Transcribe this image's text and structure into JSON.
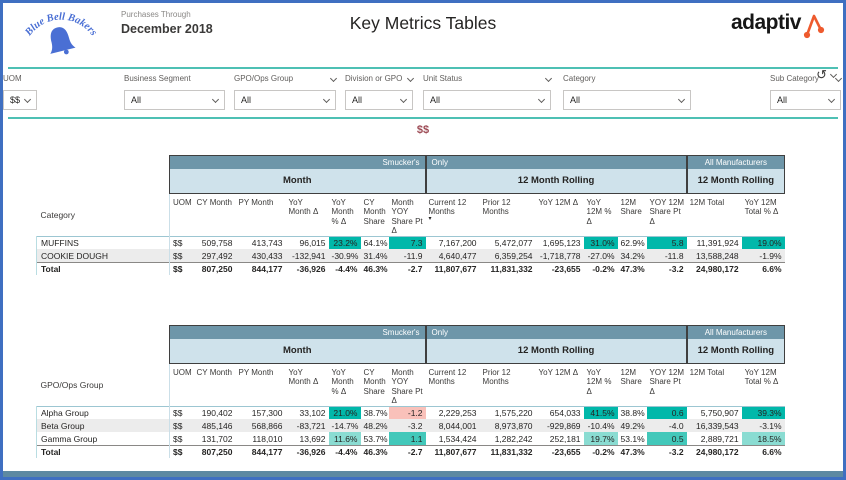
{
  "colors": {
    "page_border": "#3F6FC1",
    "teal_rule": "#4EC0B4",
    "band_dark": "#6E96A9",
    "band_light": "#CFE2EB",
    "pos_strong": "#01B8AA",
    "pos_mid": "#42C8BA",
    "pos_light": "#8ADCD2",
    "neg_strong": "#FD625E",
    "neg_light": "#F9C1BA",
    "measure": "#9D4B55",
    "bottom_bar": "#5D89A2",
    "logo_blue": "#4A6FD4",
    "brand_orange": "#EE5A2E"
  },
  "header": {
    "logo_text": "Blue Bell Bakers",
    "purchases_label": "Purchases Through",
    "period": "December 2018",
    "title": "Key Metrics Tables",
    "brand": "adaptiv"
  },
  "filters": [
    {
      "label": "Business Segment",
      "value": "All",
      "label_chevron": false
    },
    {
      "label": "GPO/Ops Group",
      "value": "All",
      "label_chevron": true
    },
    {
      "label": "Division or GPO",
      "value": "All",
      "label_chevron": true
    },
    {
      "label": "Unit Status",
      "value": "All",
      "label_chevron": true
    },
    {
      "label": "Category",
      "value": "All",
      "label_chevron": false
    },
    {
      "label": "Sub Category",
      "value": "All",
      "label_chevron": true
    },
    {
      "label": "UOM",
      "value": "$$",
      "label_chevron": false
    }
  ],
  "undo_glyph": "↺",
  "selected_measure": "$$",
  "tables": [
    {
      "row_header_label": "Category",
      "band1": {
        "smuckers": "Smucker's",
        "only": "Only",
        "all_manufacturers": "All Manufacturers"
      },
      "band2": {
        "month": "Month",
        "rolling": "12 Month Rolling",
        "rolling_all": "12 Month Rolling"
      },
      "columns": [
        "UOM",
        "CY Month",
        "PY Month",
        "YoY Month Δ",
        "YoY Month % Δ",
        "CY Month Share",
        "Month YOY Share Pt Δ",
        "Current 12 Months",
        "Prior 12 Months",
        "YoY 12M Δ",
        "YoY 12M % Δ",
        "12M Share",
        "YOY 12M Share Pt Δ",
        "12M Total",
        "YoY 12M Total % Δ"
      ],
      "sort_column_index": 7,
      "sort_glyph": "▾",
      "rows": [
        {
          "label": "MUFFINS",
          "cells": [
            "$$",
            "509,758",
            "413,743",
            "96,015",
            {
              "v": "23.2%",
              "h": "t3"
            },
            "64.1%",
            {
              "v": "7.3",
              "h": "t3"
            },
            "7,167,200",
            "5,472,077",
            "1,695,123",
            {
              "v": "31.0%",
              "h": "t3"
            },
            "62.9%",
            {
              "v": "5.8",
              "h": "t3"
            },
            "11,391,924",
            {
              "v": "19.0%",
              "h": "t3"
            }
          ]
        },
        {
          "label": "COOKIE DOUGH",
          "stripe": true,
          "cells": [
            "$$",
            "297,492",
            "430,433",
            "-132,941",
            {
              "v": "-30.9%",
              "h": "r3"
            },
            "31.4%",
            {
              "v": "-11.9",
              "h": "r3"
            },
            "4,640,477",
            "6,359,254",
            "-1,718,778",
            {
              "v": "-27.0%",
              "h": "r3"
            },
            "34.2%",
            {
              "v": "-11.8",
              "h": "r3"
            },
            "13,588,248",
            {
              "v": "-1.9%",
              "h": "r3"
            }
          ]
        },
        {
          "label": "Total",
          "total": true,
          "cells": [
            "$$",
            "807,250",
            "844,177",
            "-36,926",
            "-4.4%",
            "46.3%",
            "-2.7",
            "11,807,677",
            "11,831,332",
            "-23,655",
            "-0.2%",
            "47.3%",
            "-3.2",
            "24,980,172",
            "6.6%"
          ]
        }
      ]
    },
    {
      "row_header_label": "GPO/Ops Group",
      "band1": {
        "smuckers": "Smucker's",
        "only": "Only",
        "all_manufacturers": "All Manufacturers"
      },
      "band2": {
        "month": "Month",
        "rolling": "12 Month Rolling",
        "rolling_all": "12 Month Rolling"
      },
      "columns": [
        "UOM",
        "CY Month",
        "PY Month",
        "YoY Month Δ",
        "YoY Month % Δ",
        "CY Month Share",
        "Month YOY Share Pt Δ",
        "Current 12 Months",
        "Prior 12 Months",
        "YoY 12M Δ",
        "YoY 12M % Δ",
        "12M Share",
        "YOY 12M Share Pt Δ",
        "12M Total",
        "YoY 12M Total % Δ"
      ],
      "sort_column_index": -1,
      "sort_glyph": "▾",
      "rows": [
        {
          "label": "Alpha Group",
          "cells": [
            "$$",
            "190,402",
            "157,300",
            "33,102",
            {
              "v": "21.0%",
              "h": "t3"
            },
            "38.7%",
            {
              "v": "-1.2",
              "h": "r1"
            },
            "2,229,253",
            "1,575,220",
            "654,033",
            {
              "v": "41.5%",
              "h": "t3"
            },
            "38.8%",
            {
              "v": "0.6",
              "h": "t3"
            },
            "5,750,907",
            {
              "v": "39.3%",
              "h": "t3"
            }
          ]
        },
        {
          "label": "Beta Group",
          "stripe": true,
          "cells": [
            "$$",
            "485,146",
            "568,866",
            "-83,721",
            {
              "v": "-14.7%",
              "h": "r3"
            },
            "48.2%",
            {
              "v": "-3.2",
              "h": "r3"
            },
            "8,044,001",
            "8,973,870",
            "-929,869",
            {
              "v": "-10.4%",
              "h": "r3"
            },
            "49.2%",
            {
              "v": "-4.0",
              "h": "r3"
            },
            "16,339,543",
            {
              "v": "-3.1%",
              "h": "r3"
            }
          ]
        },
        {
          "label": "Gamma Group",
          "cells": [
            "$$",
            "131,702",
            "118,010",
            "13,692",
            {
              "v": "11.6%",
              "h": "t1"
            },
            "53.7%",
            {
              "v": "1.1",
              "h": "t2"
            },
            "1,534,424",
            "1,282,242",
            "252,181",
            {
              "v": "19.7%",
              "h": "t1"
            },
            "53.1%",
            {
              "v": "0.5",
              "h": "t2"
            },
            "2,889,721",
            {
              "v": "18.5%",
              "h": "t1"
            }
          ]
        },
        {
          "label": "Total",
          "total": true,
          "cells": [
            "$$",
            "807,250",
            "844,177",
            "-36,926",
            "-4.4%",
            "46.3%",
            "-2.7",
            "11,807,677",
            "11,831,332",
            "-23,655",
            "-0.2%",
            "47.3%",
            "-3.2",
            "24,980,172",
            "6.6%"
          ]
        }
      ]
    }
  ]
}
